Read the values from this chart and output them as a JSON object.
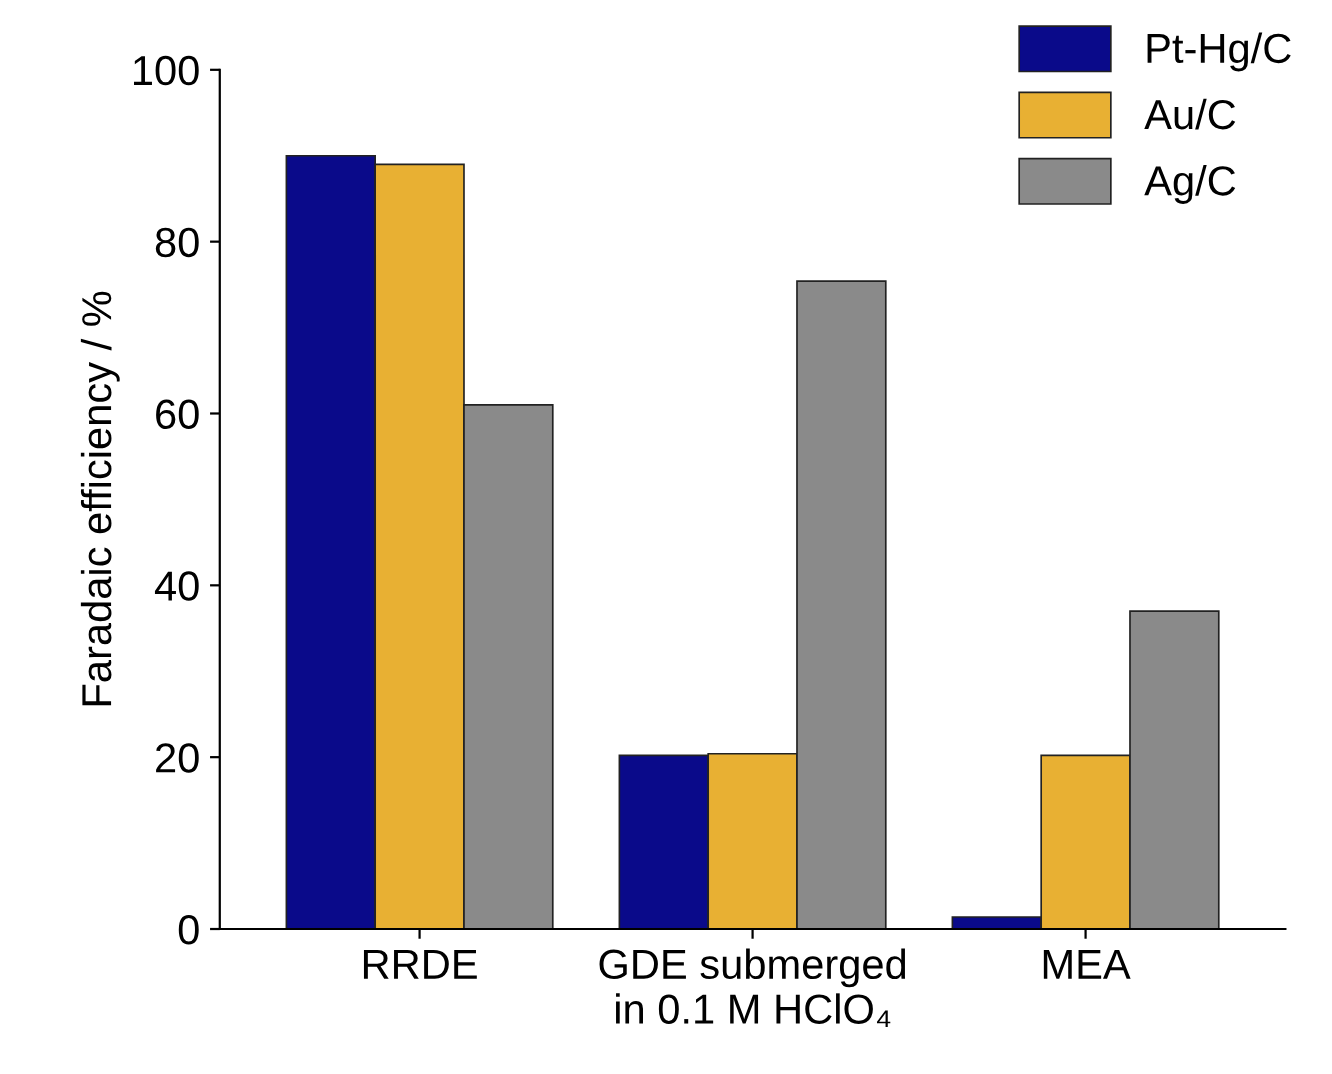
{
  "chart_data": {
    "type": "bar",
    "ylabel": "Faradaic efficiency / %",
    "categories": [
      "RRDE",
      "GDE submerged\nin 0.1 M HClO₄",
      "MEA"
    ],
    "series": [
      {
        "name": "Pt-Hg/C",
        "color": "#0a0a8a",
        "values": [
          90,
          20.2,
          1.4
        ]
      },
      {
        "name": "Au/C",
        "color": "#e8b033",
        "values": [
          89,
          20.4,
          20.2
        ]
      },
      {
        "name": "Ag/C",
        "color": "#8a8a8a",
        "values": [
          61,
          75.4,
          37
        ]
      }
    ],
    "ylim": [
      0,
      100
    ],
    "yticks": [
      0,
      20,
      40,
      60,
      80,
      100
    ],
    "grid": false,
    "legend": "top right"
  }
}
